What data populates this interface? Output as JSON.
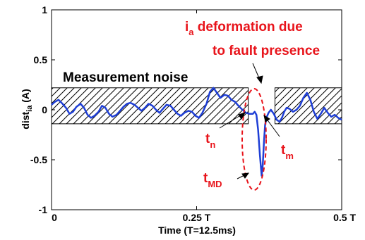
{
  "chart_data": {
    "type": "line",
    "xlabel": "Time (T=12.5ms)",
    "ylabel_main": "dist",
    "ylabel_sub": "ia",
    "ylabel_unit": " (A)",
    "xlim": [
      0,
      0.5
    ],
    "ylim": [
      -1,
      1
    ],
    "x_ticks": [
      {
        "value": 0,
        "label": "0"
      },
      {
        "value": 0.25,
        "label": "0.25 T"
      },
      {
        "value": 0.5,
        "label": "0.5 T"
      }
    ],
    "y_ticks": [
      {
        "value": 1,
        "label": "1"
      },
      {
        "value": 0.5,
        "label": "0.5"
      },
      {
        "value": 0,
        "label": "0"
      },
      {
        "value": -0.5,
        "label": "-0.5"
      },
      {
        "value": -1,
        "label": "-1"
      }
    ],
    "grid": false,
    "line_color": "#1f3fd6",
    "noise_bands": [
      {
        "x0": 0.0,
        "x1": 0.339,
        "y0": -0.14,
        "y1": 0.22
      },
      {
        "x0": 0.385,
        "x1": 0.5,
        "y0": -0.14,
        "y1": 0.22
      }
    ],
    "series": [
      {
        "x": [
          0.0,
          0.006,
          0.012,
          0.019,
          0.025,
          0.031,
          0.037,
          0.043,
          0.05,
          0.056,
          0.062,
          0.068,
          0.074,
          0.081,
          0.087,
          0.093,
          0.099,
          0.105,
          0.112,
          0.118,
          0.124,
          0.13,
          0.136,
          0.143,
          0.149,
          0.155,
          0.161,
          0.167,
          0.174,
          0.18,
          0.186,
          0.192,
          0.198,
          0.205,
          0.211,
          0.217,
          0.223,
          0.229,
          0.236,
          0.242,
          0.248,
          0.254,
          0.26,
          0.267,
          0.273,
          0.279,
          0.285,
          0.291,
          0.298,
          0.304,
          0.31,
          0.316,
          0.322,
          0.329,
          0.335,
          0.341,
          0.347,
          0.35,
          0.353,
          0.356,
          0.359,
          0.362,
          0.364,
          0.366,
          0.368,
          0.371,
          0.374,
          0.378,
          0.383,
          0.388,
          0.393,
          0.397,
          0.401,
          0.405,
          0.41,
          0.416,
          0.422,
          0.428,
          0.434,
          0.44,
          0.446,
          0.452,
          0.458,
          0.464,
          0.47,
          0.476,
          0.482,
          0.488,
          0.494,
          0.5
        ],
        "y": [
          0.05,
          0.08,
          0.1,
          0.06,
          0.02,
          -0.04,
          -0.02,
          0.03,
          0.06,
          0.02,
          -0.05,
          -0.08,
          -0.06,
          -0.02,
          0.04,
          0.02,
          -0.04,
          -0.07,
          -0.05,
          -0.01,
          0.03,
          0.06,
          0.07,
          0.05,
          0.02,
          -0.01,
          0.02,
          0.06,
          0.04,
          0.0,
          -0.03,
          0.01,
          0.05,
          0.04,
          0.0,
          -0.04,
          -0.06,
          -0.03,
          -0.01,
          -0.02,
          -0.06,
          -0.08,
          -0.03,
          0.06,
          0.18,
          0.22,
          0.17,
          0.12,
          0.15,
          0.14,
          0.1,
          0.08,
          0.04,
          0.0,
          -0.03,
          -0.04,
          -0.04,
          -0.02,
          -0.05,
          -0.2,
          -0.45,
          -0.66,
          -0.55,
          -0.32,
          -0.15,
          -0.07,
          -0.03,
          0.0,
          -0.04,
          -0.1,
          -0.12,
          -0.08,
          -0.02,
          0.02,
          0.01,
          -0.02,
          0.0,
          0.04,
          0.12,
          0.17,
          0.1,
          -0.02,
          -0.09,
          -0.04,
          0.02,
          -0.03,
          -0.07,
          -0.05,
          -0.08,
          -0.1
        ]
      }
    ],
    "annotations": {
      "noise_label": "Measurement noise",
      "fault_label_main": "i",
      "fault_label_sub": "a",
      "fault_label_rest": " deformation due",
      "fault_label_line2": "to fault presence",
      "tn_main": "t",
      "tn_sub": "n",
      "tm_main": "t",
      "tm_sub": "m",
      "tmd_main": "t",
      "tmd_sub": "MD"
    }
  }
}
